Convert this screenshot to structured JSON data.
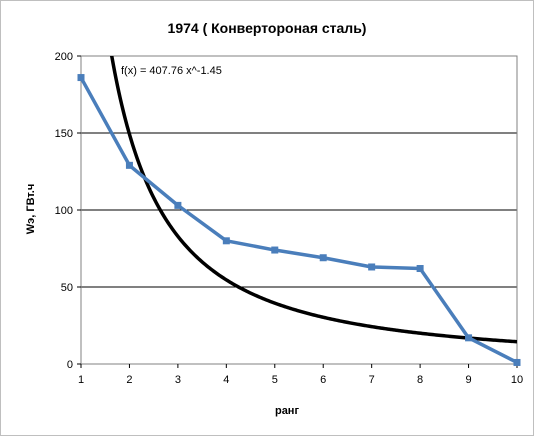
{
  "chart_data": {
    "type": "line",
    "title": "1974 ( Конвертороная сталь)",
    "xlabel": "ранг",
    "ylabel": "Wэ, ГВт.ч",
    "xlim": [
      1,
      10
    ],
    "ylim": [
      0,
      200
    ],
    "x_ticks": [
      "1",
      "2",
      "3",
      "4",
      "5",
      "6",
      "7",
      "8",
      "9",
      "10"
    ],
    "y_ticks": [
      "0",
      "50",
      "100",
      "150",
      "200"
    ],
    "grid": "horizontal",
    "annotation": "f(x) = 407.76 x^-1.45",
    "series": [
      {
        "color": "#4a7ebb",
        "marker": "square",
        "x": [
          1,
          2,
          3,
          4,
          5,
          6,
          7,
          8,
          9,
          10
        ],
        "y": [
          186,
          129,
          103,
          80,
          74,
          69,
          63,
          62,
          17,
          1
        ]
      }
    ],
    "fit": {
      "color": "#000000",
      "a": 407.76,
      "b": -1.45
    }
  }
}
